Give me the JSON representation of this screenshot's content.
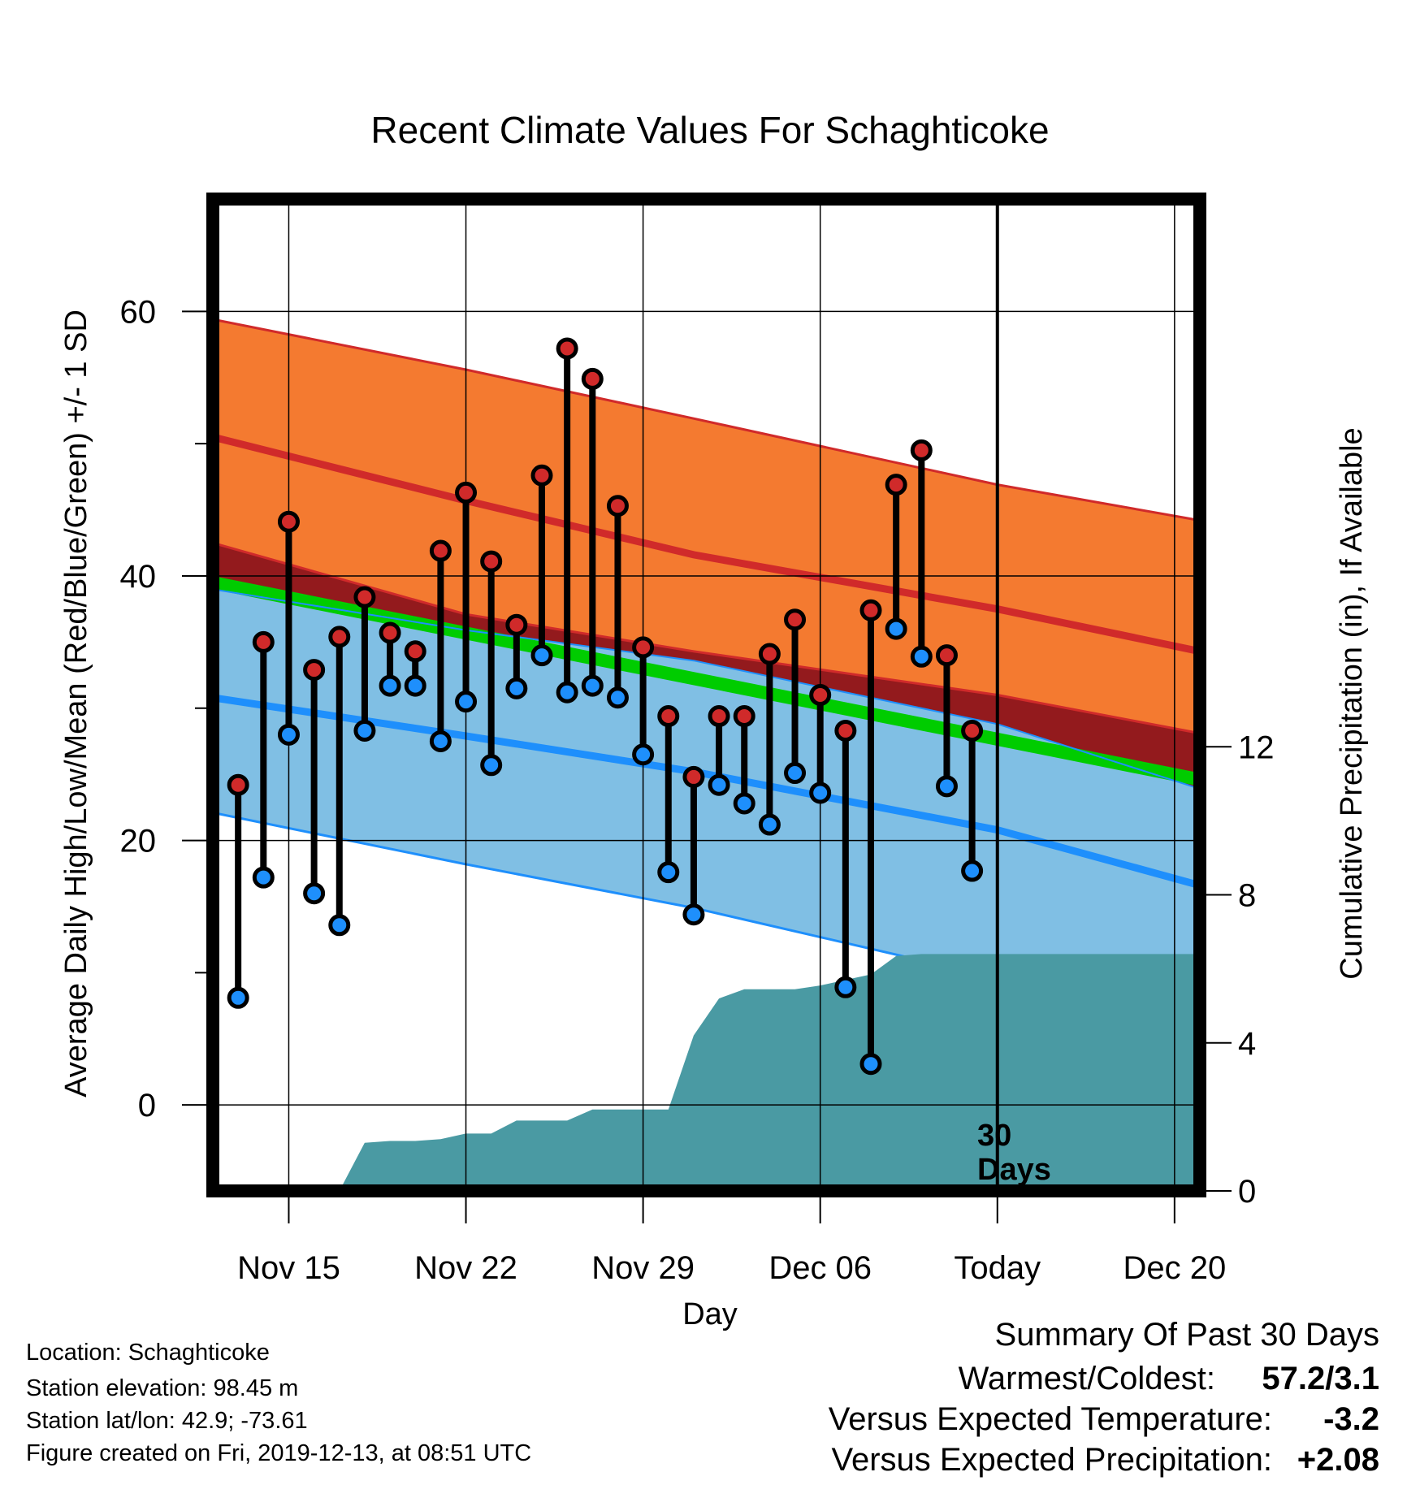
{
  "chart_data": {
    "type": "line",
    "title": "Recent Climate Values For Schaghticoke",
    "xlabel": "Day",
    "ylabel": "Average Daily High/Low/Mean (Red/Blue/Green) +/- 1 SD",
    "y2label": "Cumulative Precipitation (in), If Available",
    "x_ticks": [
      "Nov 15",
      "Nov 22",
      "Nov 29",
      "Dec 06",
      "Today",
      "Dec 20"
    ],
    "x_range": [
      "Nov 12",
      "Dec 21"
    ],
    "ylim": [
      -6.5,
      68.5
    ],
    "y_ticks": [
      0,
      20,
      40,
      60
    ],
    "y2lim": [
      0,
      26.8
    ],
    "y2_ticks": [
      0,
      4,
      8,
      12
    ],
    "grid": true,
    "today": "Dec 13",
    "today_label": [
      "30",
      "Days"
    ],
    "days": [
      "Nov 13",
      "Nov 14",
      "Nov 15",
      "Nov 16",
      "Nov 17",
      "Nov 18",
      "Nov 19",
      "Nov 20",
      "Nov 21",
      "Nov 22",
      "Nov 23",
      "Nov 24",
      "Nov 25",
      "Nov 26",
      "Nov 27",
      "Nov 28",
      "Nov 29",
      "Nov 30",
      "Dec 01",
      "Dec 02",
      "Dec 03",
      "Dec 04",
      "Dec 05",
      "Dec 06",
      "Dec 07",
      "Dec 08",
      "Dec 09",
      "Dec 10",
      "Dec 11",
      "Dec 12"
    ],
    "daily_high": [
      24.2,
      35.0,
      44.1,
      32.9,
      35.4,
      38.4,
      35.7,
      34.3,
      41.9,
      46.3,
      41.1,
      36.3,
      47.6,
      57.2,
      54.9,
      45.3,
      34.6,
      29.4,
      24.8,
      29.4,
      29.4,
      34.1,
      36.7,
      31.0,
      28.3,
      37.4,
      46.9,
      49.5,
      34.0,
      28.3
    ],
    "daily_low": [
      8.1,
      17.2,
      28.0,
      16.0,
      13.6,
      28.3,
      31.7,
      31.7,
      27.5,
      30.5,
      25.7,
      31.5,
      34.0,
      31.2,
      31.7,
      30.8,
      26.5,
      17.6,
      14.4,
      24.2,
      22.8,
      21.2,
      25.1,
      23.6,
      8.9,
      3.1,
      36.0,
      33.9,
      24.1,
      17.7
    ],
    "normal_high": {
      "x": [
        "Nov 12",
        "Nov 22",
        "Dec 01",
        "Dec 13",
        "Dec 21"
      ],
      "mean": [
        50.5,
        45.7,
        41.6,
        37.5,
        34.3
      ],
      "upper": [
        59.4,
        55.6,
        51.9,
        46.9,
        44.2
      ],
      "lower": [
        42.5,
        37.1,
        34.3,
        31.0,
        28.1
      ]
    },
    "normal_mean": {
      "x": [
        "Nov 12",
        "Dec 21"
      ],
      "mean": [
        39.5,
        24.6
      ]
    },
    "normal_low": {
      "x": [
        "Nov 12",
        "Nov 22",
        "Dec 01",
        "Dec 13",
        "Dec 21"
      ],
      "mean": [
        30.8,
        27.9,
        25.2,
        20.8,
        16.6
      ],
      "upper": [
        39.0,
        35.9,
        33.6,
        28.8,
        23.9
      ],
      "lower": [
        22.1,
        18.2,
        14.9,
        9.6,
        9.6
      ]
    },
    "precip_cumulative": {
      "x": [
        "Nov 17",
        "Nov 18",
        "Nov 19",
        "Nov 20",
        "Nov 21",
        "Nov 22",
        "Nov 23",
        "Nov 24",
        "Nov 25",
        "Nov 26",
        "Nov 27",
        "Nov 28",
        "Nov 29",
        "Nov 30",
        "Dec 01",
        "Dec 02",
        "Dec 03",
        "Dec 04",
        "Dec 05",
        "Dec 06",
        "Dec 07",
        "Dec 08",
        "Dec 09",
        "Dec 10",
        "Dec 11",
        "Dec 12",
        "Dec 21"
      ],
      "values": [
        0.0,
        1.3,
        1.35,
        1.35,
        1.4,
        1.55,
        1.55,
        1.9,
        1.9,
        1.9,
        2.2,
        2.2,
        2.2,
        2.2,
        4.2,
        5.2,
        5.45,
        5.45,
        5.45,
        5.55,
        5.7,
        5.85,
        6.35,
        6.4,
        6.4,
        6.4,
        6.4
      ]
    },
    "colors": {
      "high_band": "#f47a30",
      "high_line": "#d02a2a",
      "overlap_band": "#931a1d",
      "mean_line": "#00cc00",
      "low_band": "#80bfe4",
      "low_line": "#1e8ffc",
      "precip": "#4a9aa3",
      "high_marker": "#d02a2a",
      "low_marker": "#1e8ffc",
      "positive": "#11bb11"
    }
  },
  "footer": {
    "location": "Location: Schaghticoke",
    "elevation": "Station elevation: 98.45 m",
    "latlon": "Station lat/lon: 42.9; -73.61",
    "created": "Figure created on Fri, 2019-12-13, at 08:51 UTC"
  },
  "summary": {
    "title": "Summary Of Past 30 Days",
    "warmest_coldest_label": "Warmest/Coldest:",
    "warmest_coldest_value": "57.2/3.1",
    "temp_label": "Versus Expected Temperature:",
    "temp_value": "-3.2",
    "temp_color": "#1e8ffc",
    "precip_label": "Versus Expected Precipitation:",
    "precip_value": "+2.08",
    "precip_color": "#11bb11"
  }
}
